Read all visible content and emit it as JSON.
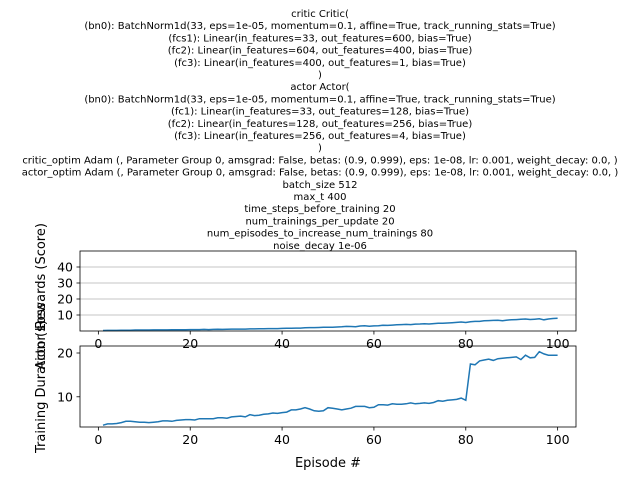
{
  "figure_title_lines": [
    "critic Critic(",
    "(bn0): BatchNorm1d(33, eps=1e-05, momentum=0.1, affine=True, track_running_stats=True)",
    "(fcs1): Linear(in_features=33, out_features=600, bias=True)",
    "(fc2): Linear(in_features=604, out_features=400, bias=True)",
    "(fc3): Linear(in_features=400, out_features=1, bias=True)",
    ")",
    "actor Actor(",
    "(bn0): BatchNorm1d(33, eps=1e-05, momentum=0.1, affine=True, track_running_stats=True)",
    "(fc1): Linear(in_features=33, out_features=128, bias=True)",
    "(fc2): Linear(in_features=128, out_features=256, bias=True)",
    "(fc3): Linear(in_features=256, out_features=4, bias=True)",
    ")",
    "critic_optim Adam (, Parameter Group 0,     amsgrad: False,     betas: (0.9, 0.999),     eps: 1e-08,     lr: 0.001,     weight_decay: 0.0, )",
    "actor_optim Adam (, Parameter Group 0,     amsgrad: False,     betas: (0.9, 0.999),     eps: 1e-08,     lr: 0.001,     weight_decay: 0.0, )",
    "batch_size 512",
    "max_t 400",
    "time_steps_before_training 20",
    "num_trainings_per_update 20",
    "num_episodes_to_increase_num_trainings 80",
    "noise_decay 1e-06"
  ],
  "colors": {
    "line": "#1f77b4",
    "grid": "#b0b0b0",
    "axes": "#000000"
  },
  "chart_data": [
    {
      "type": "line",
      "title": "",
      "xlabel": "",
      "ylabel": "Rewards (Score)",
      "xlim": [
        -4,
        104
      ],
      "ylim": [
        0,
        50
      ],
      "xticks": [
        0,
        20,
        40,
        60,
        80,
        100
      ],
      "yticks": [
        10,
        20,
        30,
        40
      ],
      "grid_y": true,
      "legend": "none",
      "series": [
        {
          "x": [
            1,
            2,
            3,
            4,
            5,
            6,
            7,
            8,
            9,
            10,
            11,
            12,
            13,
            14,
            15,
            16,
            17,
            18,
            19,
            20,
            21,
            22,
            23,
            24,
            25,
            26,
            27,
            28,
            29,
            30,
            31,
            32,
            33,
            34,
            35,
            36,
            37,
            38,
            39,
            40,
            41,
            42,
            43,
            44,
            45,
            46,
            47,
            48,
            49,
            50,
            51,
            52,
            53,
            54,
            55,
            56,
            57,
            58,
            59,
            60,
            61,
            62,
            63,
            64,
            65,
            66,
            67,
            68,
            69,
            70,
            71,
            72,
            73,
            74,
            75,
            76,
            77,
            78,
            79,
            80,
            81,
            82,
            83,
            84,
            85,
            86,
            87,
            88,
            89,
            90,
            91,
            92,
            93,
            94,
            95,
            96,
            97,
            98,
            99,
            100
          ],
          "values": [
            0.3,
            0.4,
            0.4,
            0.4,
            0.5,
            0.5,
            0.5,
            0.6,
            0.6,
            0.6,
            0.6,
            0.7,
            0.7,
            0.7,
            0.7,
            0.8,
            0.8,
            0.8,
            0.8,
            0.9,
            0.9,
            0.9,
            1.0,
            0.9,
            1.0,
            1.1,
            1.0,
            1.1,
            1.2,
            1.2,
            1.2,
            1.2,
            1.3,
            1.3,
            1.4,
            1.4,
            1.5,
            1.5,
            1.5,
            1.6,
            1.7,
            1.7,
            1.8,
            1.8,
            2.0,
            2.1,
            2.1,
            2.2,
            2.3,
            2.4,
            2.3,
            2.5,
            2.6,
            2.9,
            2.8,
            2.7,
            3.1,
            3.3,
            3.0,
            3.2,
            3.3,
            3.6,
            3.5,
            3.7,
            3.9,
            4.0,
            4.1,
            4.0,
            4.3,
            4.4,
            4.5,
            4.4,
            4.6,
            4.8,
            4.8,
            5.0,
            5.2,
            5.4,
            5.6,
            5.3,
            5.8,
            6.0,
            6.0,
            6.4,
            6.5,
            6.6,
            6.7,
            6.4,
            6.8,
            7.0,
            7.1,
            7.3,
            7.5,
            7.2,
            7.4,
            7.6,
            7.0,
            7.5,
            7.8,
            8.0
          ]
        }
      ]
    },
    {
      "type": "line",
      "title": "",
      "xlabel": "Episode #",
      "ylabel": "Training Duration (s)",
      "ylabel_overlap": "Actor Loss",
      "xlim": [
        -4,
        104
      ],
      "ylim": [
        3.1,
        21.6
      ],
      "xticks": [
        0,
        20,
        40,
        60,
        80,
        100
      ],
      "yticks": [
        10,
        20
      ],
      "grid_y": false,
      "legend": "none",
      "series": [
        {
          "x": [
            1,
            2,
            3,
            4,
            5,
            6,
            7,
            8,
            9,
            10,
            11,
            12,
            13,
            14,
            15,
            16,
            17,
            18,
            19,
            20,
            21,
            22,
            23,
            24,
            25,
            26,
            27,
            28,
            29,
            30,
            31,
            32,
            33,
            34,
            35,
            36,
            37,
            38,
            39,
            40,
            41,
            42,
            43,
            44,
            45,
            46,
            47,
            48,
            49,
            50,
            51,
            52,
            53,
            54,
            55,
            56,
            57,
            58,
            59,
            60,
            61,
            62,
            63,
            64,
            65,
            66,
            67,
            68,
            69,
            70,
            71,
            72,
            73,
            74,
            75,
            76,
            77,
            78,
            79,
            80,
            81,
            82,
            83,
            84,
            85,
            86,
            87,
            88,
            89,
            90,
            91,
            92,
            93,
            94,
            95,
            96,
            97,
            98,
            99,
            100
          ],
          "values": [
            3.5,
            3.8,
            3.8,
            3.9,
            4.1,
            4.4,
            4.4,
            4.3,
            4.2,
            4.2,
            4.1,
            4.2,
            4.3,
            4.5,
            4.5,
            4.4,
            4.6,
            4.7,
            4.8,
            4.8,
            4.7,
            5.0,
            5.0,
            5.0,
            5.0,
            5.2,
            5.2,
            5.1,
            5.4,
            5.5,
            5.6,
            5.4,
            5.9,
            5.7,
            5.8,
            6.0,
            6.1,
            6.3,
            6.2,
            6.4,
            6.5,
            7.0,
            7.0,
            7.2,
            7.5,
            7.2,
            6.8,
            6.7,
            6.8,
            7.5,
            7.4,
            7.2,
            7.0,
            7.2,
            7.4,
            7.8,
            7.8,
            7.8,
            7.5,
            7.6,
            8.2,
            8.2,
            8.1,
            8.4,
            8.3,
            8.3,
            8.4,
            8.6,
            8.4,
            8.5,
            8.6,
            8.5,
            8.7,
            9.1,
            9.0,
            9.2,
            9.3,
            9.4,
            9.7,
            9.2,
            17.5,
            17.3,
            18.2,
            18.4,
            18.6,
            18.3,
            18.7,
            18.8,
            18.9,
            19.0,
            19.1,
            18.5,
            19.5,
            18.9,
            19.0,
            20.3,
            19.8,
            19.5,
            19.5,
            19.5
          ]
        }
      ]
    }
  ]
}
